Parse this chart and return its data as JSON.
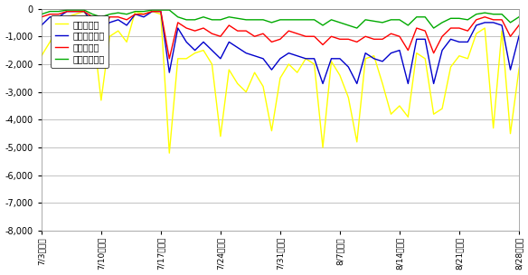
{
  "yticks": [
    0,
    -1000,
    -2000,
    -3000,
    -4000,
    -5000,
    -6000,
    -7000,
    -8000
  ],
  "xtick_labels": [
    "7/3（日）",
    "7/10（日）",
    "7/17（日）",
    "7/24（日）",
    "7/31（日）",
    "8/7（日）",
    "8/14（日）",
    "8/21（日）",
    "8/28（日）"
  ],
  "legend_labels": [
    "吉田ルート",
    "富士宮ルート",
    "須走ルート",
    "御殿場ルート"
  ],
  "line_colors": [
    "#FFFF00",
    "#0000CC",
    "#FF0000",
    "#00AA00"
  ],
  "background_color": "#FFFFFF",
  "grid_color": "#AAAAAA",
  "xtick_positions": [
    0,
    7,
    14,
    21,
    28,
    35,
    42,
    49,
    56
  ],
  "yoshida": [
    1700,
    1200,
    600,
    300,
    200,
    100,
    600,
    3300,
    1000,
    800,
    1200,
    100,
    200,
    100,
    200,
    5200,
    1800,
    1800,
    1600,
    1500,
    2000,
    4600,
    2200,
    2700,
    3000,
    2300,
    2800,
    4400,
    2500,
    2000,
    2300,
    1800,
    2000,
    5000,
    1900,
    2400,
    3200,
    4800,
    1800,
    1700,
    2700,
    3800,
    3500,
    3900,
    1600,
    1800,
    3800,
    3600,
    2100,
    1700,
    1800,
    900,
    700,
    4300,
    800,
    4500,
    2200,
    600
  ],
  "fujinomiya": [
    600,
    300,
    300,
    100,
    100,
    100,
    500,
    800,
    500,
    400,
    600,
    200,
    300,
    100,
    100,
    2300,
    700,
    1200,
    1500,
    1200,
    1500,
    1800,
    1200,
    1400,
    1600,
    1700,
    1800,
    2200,
    1800,
    1600,
    1700,
    1800,
    1800,
    2700,
    1800,
    1800,
    2100,
    2700,
    1600,
    1800,
    1900,
    1600,
    1500,
    2700,
    1100,
    1100,
    2700,
    1500,
    1100,
    1200,
    1200,
    600,
    500,
    500,
    600,
    2200,
    1000,
    200
  ],
  "subashiri": [
    300,
    200,
    200,
    100,
    100,
    100,
    300,
    1100,
    300,
    300,
    400,
    200,
    200,
    100,
    100,
    1800,
    500,
    700,
    800,
    700,
    900,
    1000,
    600,
    800,
    800,
    1000,
    900,
    1200,
    1100,
    800,
    900,
    1000,
    1000,
    1300,
    1000,
    1100,
    1100,
    1200,
    1000,
    1100,
    1100,
    900,
    1000,
    1500,
    700,
    800,
    1600,
    1000,
    700,
    700,
    800,
    400,
    300,
    400,
    400,
    1000,
    600,
    100
  ],
  "gotemba": [
    200,
    100,
    100,
    50,
    50,
    50,
    200,
    300,
    200,
    150,
    200,
    100,
    100,
    50,
    50,
    50,
    300,
    400,
    400,
    300,
    400,
    400,
    300,
    350,
    400,
    400,
    400,
    500,
    400,
    400,
    400,
    400,
    400,
    600,
    400,
    500,
    600,
    700,
    400,
    450,
    500,
    400,
    400,
    600,
    300,
    300,
    700,
    500,
    350,
    350,
    400,
    200,
    150,
    200,
    200,
    500,
    300,
    50
  ]
}
